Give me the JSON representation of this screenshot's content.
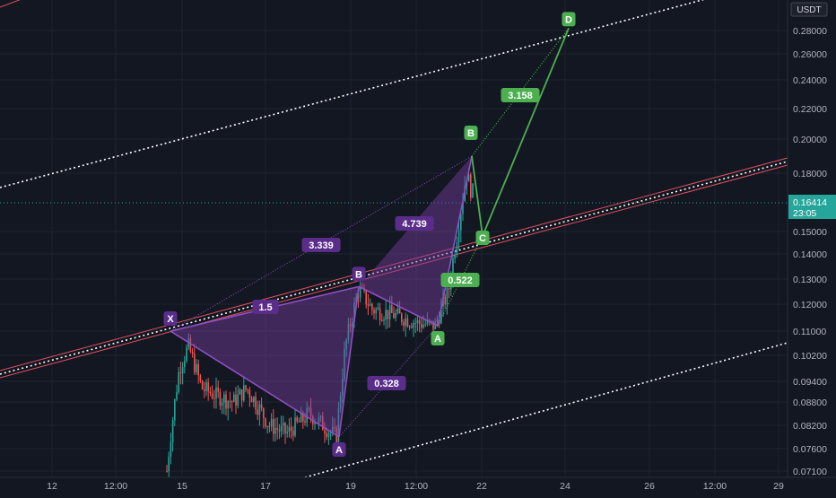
{
  "chart_data": {
    "type": "candlestick",
    "currency": "USDT",
    "last_price": "0.16414",
    "countdown": "23:05",
    "y_ticks": [
      "0.28000",
      "0.26000",
      "0.24000",
      "0.22000",
      "0.20000",
      "0.18000",
      "0.15000",
      "0.14000",
      "0.13000",
      "0.12000",
      "0.11000",
      "0.10200",
      "0.09400",
      "0.08800",
      "0.08200",
      "0.07600",
      "0.07100"
    ],
    "x_ticks": [
      "12",
      "12:00",
      "15",
      "17",
      "19",
      "12:00",
      "22",
      "24",
      "26",
      "12:00",
      "29"
    ],
    "pattern_points": [
      {
        "label": "X",
        "price": 0.11
      },
      {
        "label": "A",
        "price": 0.079
      },
      {
        "label": "B",
        "price": 0.127
      },
      {
        "label": "A",
        "price": 0.112
      },
      {
        "label": "B",
        "price": 0.19
      },
      {
        "label": "C",
        "price": 0.148
      },
      {
        "label": "D",
        "price": 0.282
      }
    ],
    "ratios": [
      "1.5",
      "3.339",
      "0.328",
      "4.739",
      "0.522",
      "3.158"
    ]
  }
}
